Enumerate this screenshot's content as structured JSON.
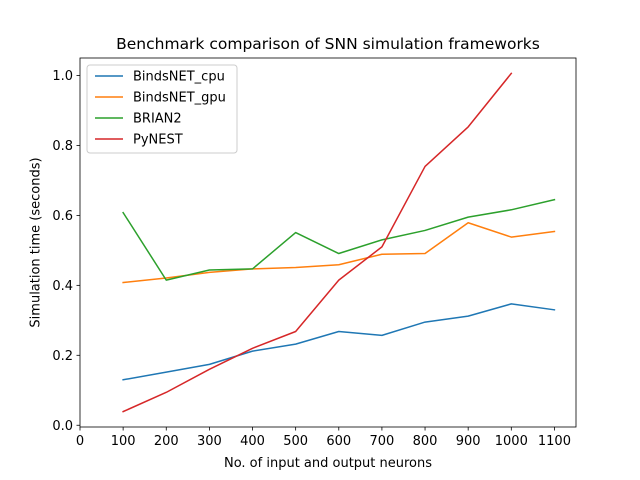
{
  "chart_data": {
    "type": "line",
    "title": "Benchmark comparison of SNN simulation frameworks",
    "xlabel": "No. of input and output neurons",
    "ylabel": "Simulation time (seconds)",
    "xlim": [
      0,
      1150
    ],
    "ylim": [
      -0.005,
      1.05
    ],
    "xticks": [
      0,
      100,
      200,
      300,
      400,
      500,
      600,
      700,
      800,
      900,
      1000,
      1100
    ],
    "yticks": [
      0.0,
      0.2,
      0.4,
      0.6,
      0.8,
      1.0
    ],
    "grid": false,
    "legend_position": "top-left",
    "series": [
      {
        "name": "BindsNET_cpu",
        "color": "#1f77b4",
        "x": [
          100,
          200,
          300,
          400,
          500,
          600,
          700,
          800,
          900,
          1000,
          1100
        ],
        "y": [
          0.13,
          0.152,
          0.174,
          0.212,
          0.232,
          0.268,
          0.257,
          0.295,
          0.312,
          0.347,
          0.33
        ]
      },
      {
        "name": "BindsNET_gpu",
        "color": "#ff7f0e",
        "x": [
          100,
          200,
          300,
          400,
          500,
          600,
          700,
          800,
          900,
          1000,
          1100
        ],
        "y": [
          0.408,
          0.421,
          0.437,
          0.447,
          0.451,
          0.459,
          0.489,
          0.491,
          0.579,
          0.538,
          0.554
        ]
      },
      {
        "name": "BRIAN2",
        "color": "#2ca02c",
        "x": [
          100,
          200,
          300,
          400,
          500,
          600,
          700,
          800,
          900,
          1000,
          1100
        ],
        "y": [
          0.608,
          0.415,
          0.444,
          0.447,
          0.551,
          0.491,
          0.53,
          0.557,
          0.595,
          0.616,
          0.645
        ]
      },
      {
        "name": "PyNEST",
        "color": "#d62728",
        "x": [
          100,
          200,
          300,
          400,
          500,
          600,
          700,
          800,
          900,
          1000
        ],
        "y": [
          0.039,
          0.094,
          0.16,
          0.22,
          0.268,
          0.415,
          0.51,
          0.74,
          0.853,
          1.006
        ]
      }
    ]
  }
}
